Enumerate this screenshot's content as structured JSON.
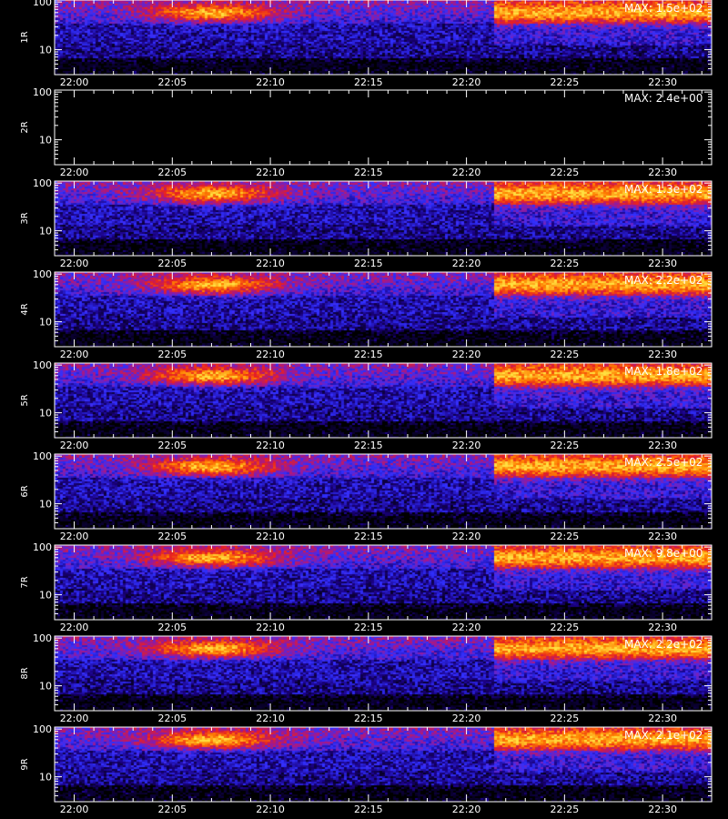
{
  "chart_data": {
    "type": "heatmap",
    "x_tick_labels": [
      "22:00",
      "22:05",
      "22:10",
      "22:15",
      "22:20",
      "22:25",
      "22:30"
    ],
    "x_ticks_minutes": [
      0,
      5,
      10,
      15,
      20,
      25,
      30
    ],
    "x_range_minutes": [
      -1.0,
      32.5
    ],
    "y_scale": "log",
    "y_range": [
      3,
      110
    ],
    "y_tick_labels": [
      "10",
      "100"
    ],
    "y_ticks": [
      10,
      100
    ],
    "colormap": [
      "#000000",
      "#1a0080",
      "#3030ff",
      "#a01890",
      "#e82020",
      "#ff8000",
      "#ffe040"
    ],
    "xlabel": "",
    "panels": [
      {
        "label": "1R",
        "max_label": "MAX: 1.5e+02",
        "active": true
      },
      {
        "label": "2R",
        "max_label": "MAX: 2.4e+00",
        "active": false
      },
      {
        "label": "3R",
        "max_label": "MAX: 1.3e+02",
        "active": true
      },
      {
        "label": "4R",
        "max_label": "MAX: 2.2e+02",
        "active": true
      },
      {
        "label": "5R",
        "max_label": "MAX: 1.8e+02",
        "active": true
      },
      {
        "label": "6R",
        "max_label": "MAX: 2.5e+02",
        "active": true
      },
      {
        "label": "7R",
        "max_label": "MAX: 9.8e+00",
        "active": true
      },
      {
        "label": "8R",
        "max_label": "MAX: 2.2e+02",
        "active": true
      },
      {
        "label": "9R",
        "max_label": "MAX: 2.1e+02",
        "active": true
      }
    ]
  }
}
